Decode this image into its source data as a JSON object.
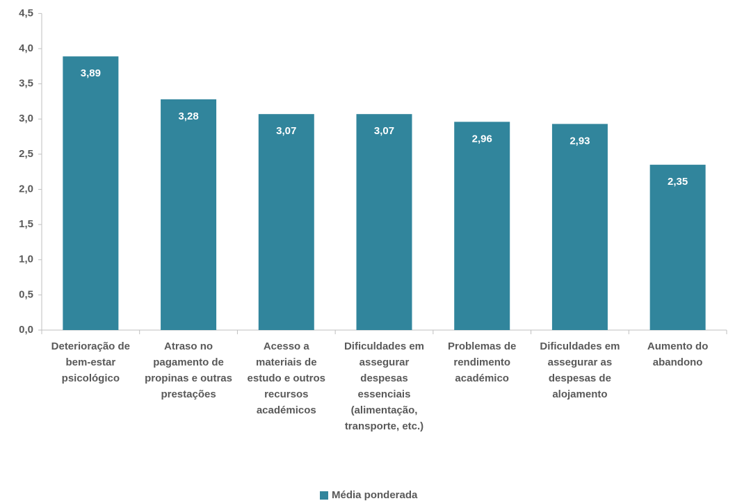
{
  "chart_data": {
    "type": "bar",
    "categories": [
      "Deterioração de bem-estar psicológico",
      "Atraso no pagamento de propinas e outras prestações",
      "Acesso a materiais de estudo e outros recursos académicos",
      "Dificuldades em assegurar despesas essenciais (alimentação, transporte, etc.)",
      "Problemas de rendimento académico",
      "Dificuldades em assegurar as despesas de alojamento",
      "Aumento do abandono"
    ],
    "series": [
      {
        "name": "Média ponderada",
        "color": "#31859c",
        "values": [
          3.89,
          3.28,
          3.07,
          3.07,
          2.96,
          2.93,
          2.35
        ],
        "value_labels": [
          "3,89",
          "3,28",
          "3,07",
          "3,07",
          "2,96",
          "2,93",
          "2,35"
        ]
      }
    ],
    "ylim": [
      0,
      4.5
    ],
    "yticks": [
      {
        "value": 0,
        "label": "0,0"
      },
      {
        "value": 0.5,
        "label": "0,5"
      },
      {
        "value": 1,
        "label": "1,0"
      },
      {
        "value": 1.5,
        "label": "1,5"
      },
      {
        "value": 2,
        "label": "2,0"
      },
      {
        "value": 2.5,
        "label": "2,5"
      },
      {
        "value": 3,
        "label": "3,0"
      },
      {
        "value": 3.5,
        "label": "3,5"
      },
      {
        "value": 4,
        "label": "4,0"
      },
      {
        "value": 4.5,
        "label": "4,5"
      }
    ],
    "grid": false,
    "legend": "bottom"
  }
}
